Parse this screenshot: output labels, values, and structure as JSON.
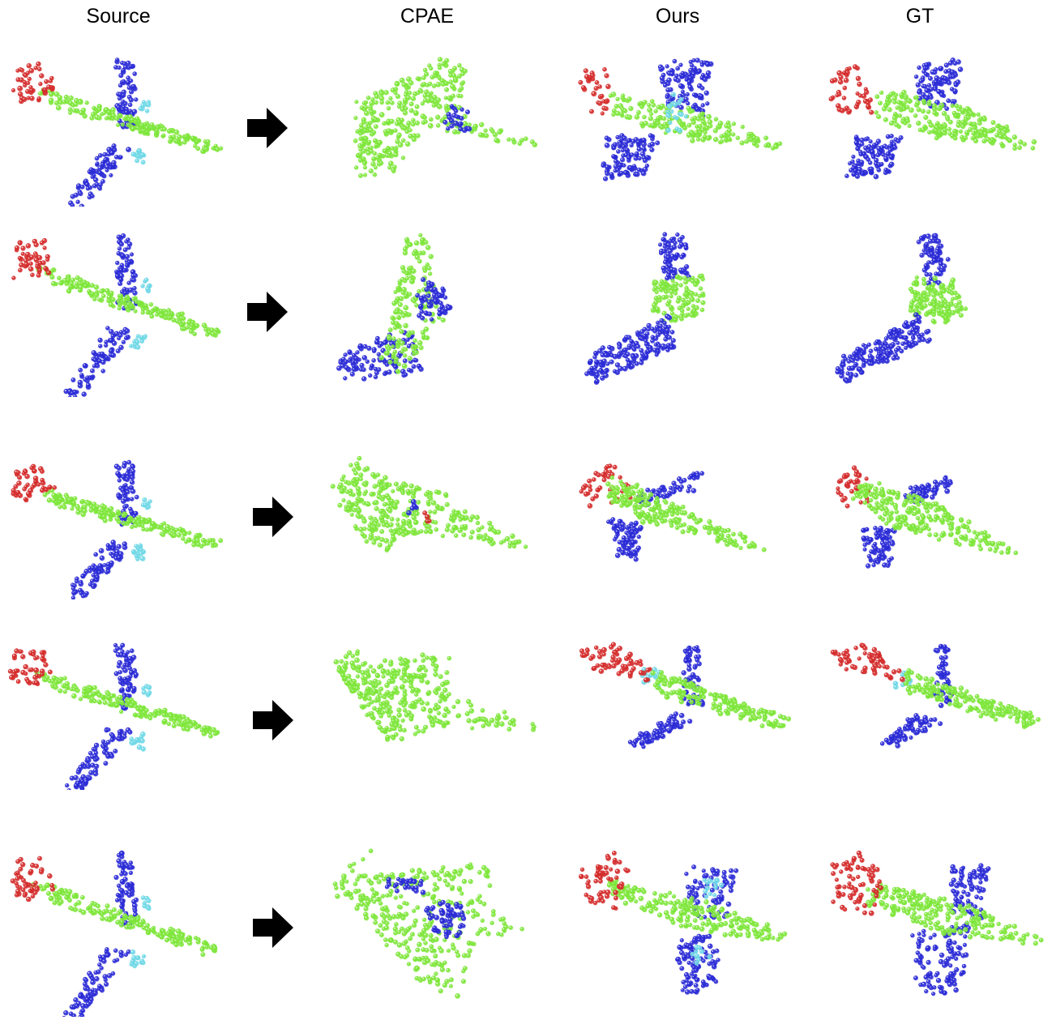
{
  "columns": [
    "Source",
    "CPAE",
    "Ours",
    "GT"
  ],
  "colors": {
    "fuselage": "#7ee63a",
    "wing": "#2a2ad6",
    "tail": "#d42a2a",
    "engine": "#6fd8e6",
    "arrow": "#000000"
  },
  "rows": [
    {
      "cells": [
        "source-airliner",
        "cpae-fighter",
        "ours-fighter",
        "gt-fighter"
      ]
    },
    {
      "cells": [
        "source-airliner",
        "cpae-bent",
        "ours-bent",
        "gt-bent"
      ]
    },
    {
      "cells": [
        "source-airliner",
        "cpae-delta",
        "ours-delta",
        "gt-delta"
      ]
    },
    {
      "cells": [
        "source-airliner",
        "cpae-airliner",
        "ours-airliner",
        "gt-airliner"
      ]
    },
    {
      "cells": [
        "source-airliner",
        "cpae-prop",
        "ours-prop",
        "gt-prop"
      ]
    }
  ]
}
